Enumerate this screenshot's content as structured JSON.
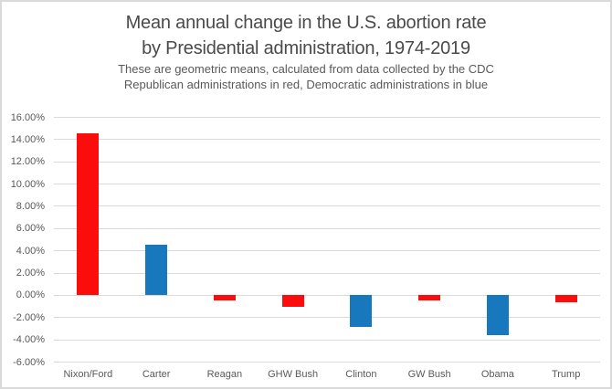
{
  "header": {
    "title_line1": "Mean annual change in the U.S. abortion rate",
    "title_line2": "by Presidential administration, 1974-2019",
    "subtitle_line1": "These are geometric means, calculated from data collected by the CDC",
    "subtitle_line2": "Republican administrations in red, Democratic administrations in blue"
  },
  "colors": {
    "republican_red": "#fc0d0d",
    "democratic_blue": "#1878be",
    "gridline": "#d9d9d9",
    "axis_text": "#595959",
    "title_text": "#4a4a4a",
    "frame_border": "#dadada",
    "background": "#ffffff"
  },
  "chart_data": {
    "type": "bar",
    "title": "Mean annual change in the U.S. abortion rate by Presidential administration, 1974-2019",
    "subtitle": "These are geometric means, calculated from data collected by the CDC. Republican administrations in red, Democratic administrations in blue",
    "xlabel": "",
    "ylabel": "",
    "categories": [
      "Nixon/Ford",
      "Carter",
      "Reagan",
      "GHW Bush",
      "Clinton",
      "GW Bush",
      "Obama",
      "Trump"
    ],
    "values": [
      14.5,
      4.5,
      -0.5,
      -1.1,
      -2.9,
      -0.5,
      -3.6,
      -0.65
    ],
    "parties": [
      "R",
      "D",
      "R",
      "R",
      "D",
      "R",
      "D",
      "R"
    ],
    "ylim": [
      -6,
      16
    ],
    "ytick_step": 2,
    "ytick_labels": [
      "16.00%",
      "14.00%",
      "12.00%",
      "10.00%",
      "8.00%",
      "6.00%",
      "4.00%",
      "2.00%",
      "0.00%",
      "-2.00%",
      "-4.00%",
      "-6.00%"
    ],
    "grid": true,
    "legend_position": "none"
  }
}
